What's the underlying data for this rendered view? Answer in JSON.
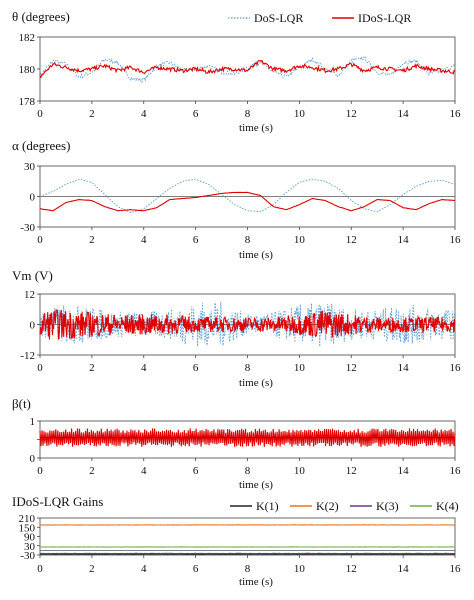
{
  "chart_data": [
    {
      "type": "line",
      "ylabel": "θ (degrees)",
      "xlabel": "time (s)",
      "xlim": [
        0,
        16
      ],
      "ylim": [
        178,
        182
      ],
      "xticks": [
        0,
        2,
        4,
        6,
        8,
        10,
        12,
        14,
        16
      ],
      "yticks": [
        178,
        180,
        182
      ],
      "legend": {
        "placement": "top-right",
        "entries": [
          "DoS-LQR",
          "IDoS-LQR"
        ]
      },
      "series": [
        {
          "name": "DoS-LQR",
          "color": "#5b9bd5",
          "style": "dotted",
          "x": [
            0,
            0.5,
            1,
            1.5,
            2,
            2.5,
            3,
            3.5,
            4,
            4.5,
            5,
            5.5,
            6,
            6.5,
            7,
            7.5,
            8,
            8.5,
            9,
            9.5,
            10,
            10.5,
            11,
            11.5,
            12,
            12.5,
            13,
            13.5,
            14,
            14.5,
            15,
            15.5,
            16
          ],
          "y": [
            179.6,
            180.5,
            180.3,
            179.5,
            179.8,
            180.6,
            180.4,
            179.4,
            179.3,
            180.2,
            180.4,
            179.9,
            180.0,
            180.2,
            179.8,
            179.7,
            180.1,
            180.4,
            179.8,
            179.5,
            180.1,
            180.6,
            180.0,
            179.6,
            180.5,
            180.7,
            179.8,
            179.6,
            180.4,
            180.5,
            179.7,
            179.9,
            180.2
          ]
        },
        {
          "name": "IDoS-LQR",
          "color": "#e00000",
          "style": "solid",
          "x": [
            0,
            0.5,
            1,
            1.5,
            2,
            2.5,
            3,
            3.5,
            4,
            4.5,
            5,
            5.5,
            6,
            6.5,
            7,
            7.5,
            8,
            8.5,
            9,
            9.5,
            10,
            10.5,
            11,
            11.5,
            12,
            12.5,
            13,
            13.5,
            14,
            14.5,
            15,
            15.5,
            16
          ],
          "y": [
            179.5,
            180.3,
            180.1,
            179.9,
            180.0,
            180.2,
            179.9,
            180.1,
            179.8,
            180.1,
            180.0,
            179.9,
            180.0,
            179.8,
            180.0,
            180.0,
            179.9,
            180.5,
            180.0,
            179.9,
            180.2,
            180.1,
            179.9,
            180.0,
            180.3,
            179.9,
            180.1,
            180.0,
            179.9,
            180.2,
            180.0,
            179.9,
            179.8
          ]
        }
      ]
    },
    {
      "type": "line",
      "ylabel": "α (degrees)",
      "xlabel": "time (s)",
      "xlim": [
        0,
        16
      ],
      "ylim": [
        -30,
        30
      ],
      "xticks": [
        0,
        2,
        4,
        6,
        8,
        10,
        12,
        14,
        16
      ],
      "yticks": [
        -30,
        0,
        30
      ],
      "series": [
        {
          "name": "DoS-LQR",
          "color": "#5b9bd5",
          "style": "dotted",
          "x": [
            0,
            0.5,
            1,
            1.5,
            2,
            2.5,
            3,
            3.5,
            4,
            4.5,
            5,
            5.5,
            6,
            6.5,
            7,
            7.5,
            8,
            8.5,
            9,
            9.5,
            10,
            10.5,
            11,
            11.5,
            12,
            12.5,
            13,
            13.5,
            14,
            14.5,
            15,
            15.5,
            16
          ],
          "y": [
            0,
            5,
            12,
            17,
            14,
            2,
            -10,
            -16,
            -12,
            -2,
            8,
            15,
            17,
            12,
            2,
            -8,
            -14,
            -15,
            -8,
            4,
            14,
            17,
            15,
            8,
            -4,
            -12,
            -15,
            -8,
            2,
            10,
            15,
            16,
            12
          ]
        },
        {
          "name": "IDoS-LQR",
          "color": "#e00000",
          "style": "solid",
          "x": [
            0,
            0.5,
            1,
            1.5,
            2,
            2.5,
            3,
            3.5,
            4,
            4.5,
            5,
            5.5,
            6,
            6.5,
            7,
            7.5,
            8,
            8.5,
            9,
            9.5,
            10,
            10.5,
            11,
            11.5,
            12,
            12.5,
            13,
            13.5,
            14,
            14.5,
            15,
            15.5,
            16
          ],
          "y": [
            -12,
            -14,
            -6,
            -3,
            -4,
            -10,
            -14,
            -13,
            -14,
            -11,
            -3,
            -2,
            -1,
            1,
            3,
            4,
            4,
            1,
            -10,
            -13,
            -8,
            -2,
            -4,
            -10,
            -14,
            -10,
            -3,
            -4,
            -11,
            -13,
            -7,
            -3,
            -4
          ]
        }
      ]
    },
    {
      "type": "line",
      "ylabel": "Vm (V)",
      "xlabel": "time (s)",
      "xlim": [
        0,
        16
      ],
      "ylim": [
        -12,
        12
      ],
      "xticks": [
        0,
        2,
        4,
        6,
        8,
        10,
        12,
        14,
        16
      ],
      "yticks": [
        -12,
        0,
        12
      ],
      "series": [
        {
          "name": "DoS-LQR",
          "color": "#5b9bd5",
          "style": "dotted",
          "envelope": "oscillating",
          "x": [
            0,
            1,
            2,
            3,
            4,
            5,
            6,
            7,
            8,
            9,
            10,
            11,
            12,
            13,
            14,
            15,
            16
          ],
          "amplitude": [
            5,
            8,
            7,
            5,
            5,
            6,
            9,
            9,
            4,
            5,
            8,
            9,
            6,
            6,
            8,
            7,
            6
          ]
        },
        {
          "name": "IDoS-LQR",
          "color": "#e00000",
          "style": "solid",
          "envelope": "oscillating",
          "x": [
            0,
            1,
            2,
            3,
            4,
            5,
            6,
            7,
            8,
            9,
            10,
            11,
            12,
            13,
            14,
            15,
            16
          ],
          "amplitude": [
            6,
            6,
            5,
            4,
            4,
            4,
            3,
            3,
            3,
            3,
            4,
            6,
            4,
            3,
            3,
            3,
            3
          ]
        }
      ]
    },
    {
      "type": "line",
      "ylabel": "β(t)",
      "xlabel": "time (s)",
      "xlim": [
        0,
        16
      ],
      "ylim": [
        0,
        1
      ],
      "xticks": [
        0,
        2,
        4,
        6,
        8,
        10,
        12,
        14,
        16
      ],
      "yticks": [
        0,
        0.5,
        1
      ],
      "ytick_labels": [
        "0",
        "",
        "1"
      ],
      "series": [
        {
          "name": "IDoS-LQR",
          "color": "#e00000",
          "style": "solid",
          "envelope": "switching",
          "x": [
            0,
            16
          ],
          "low": 0.3,
          "high": 0.8,
          "mean": 0.55
        }
      ]
    },
    {
      "type": "line",
      "ylabel": "IDoS-LQR Gains",
      "xlabel": "time (s)",
      "xlim": [
        0,
        16
      ],
      "ylim": [
        -30,
        210
      ],
      "xticks": [
        0,
        2,
        4,
        6,
        8,
        10,
        12,
        14,
        16
      ],
      "yticks": [
        -30,
        30,
        90,
        150,
        210
      ],
      "legend": {
        "placement": "top",
        "entries": [
          "K(1)",
          "K(2)",
          "K(3)",
          "K(4)"
        ]
      },
      "series": [
        {
          "name": "K(1)",
          "color": "#222222",
          "style": "solid",
          "x": [
            0,
            16
          ],
          "y": [
            -24,
            -24
          ]
        },
        {
          "name": "K(2)",
          "color": "#e8731a",
          "style": "solid",
          "x": [
            0,
            16
          ],
          "y": [
            165,
            165
          ]
        },
        {
          "name": "K(3)",
          "color": "#7030a0",
          "style": "solid",
          "x": [
            0,
            16
          ],
          "y": [
            -20,
            -20
          ]
        },
        {
          "name": "K(4)",
          "color": "#70ad47",
          "style": "solid",
          "x": [
            0,
            16
          ],
          "y": [
            22,
            22
          ]
        }
      ]
    }
  ]
}
